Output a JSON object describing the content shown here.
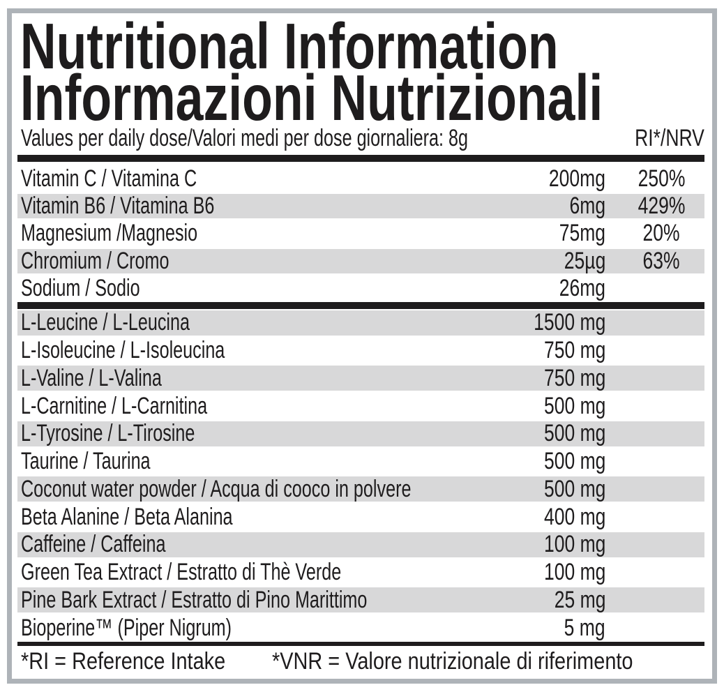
{
  "label": {
    "title_line1": "Nutritional Information",
    "title_line2": "Informazioni Nutrizionali",
    "subtitle": "Values per daily dose/Valori medi per dose giornaliera: 8g",
    "ri_header": "RI*/NRV",
    "footnote_left": "*RI = Reference Intake",
    "footnote_right": "*VNR = Valore nutrizionale di riferimento",
    "colors": {
      "ink": "#1e1c1d",
      "stripe_gray": "#d8d8d9",
      "frame_gray": "#aeb3b8",
      "background": "#ffffff"
    }
  },
  "table": {
    "sections": [
      {
        "rows": [
          {
            "label": "Vitamin C / Vitamina C",
            "amount": "200mg",
            "ri": "250%"
          },
          {
            "label": "Vitamin B6 / Vitamina B6",
            "amount": "6mg",
            "ri": "429%"
          },
          {
            "label": "Magnesium /Magnesio",
            "amount": "75mg",
            "ri": "20%"
          },
          {
            "label": "Chromium / Cromo",
            "amount": "25µg",
            "ri": "63%"
          },
          {
            "label": "Sodium / Sodio",
            "amount": "26mg",
            "ri": ""
          }
        ]
      },
      {
        "rows": [
          {
            "label": "L-Leucine / L-Leucina",
            "amount": "1500 mg",
            "ri": ""
          },
          {
            "label": "L-Isoleucine / L-Isoleucina",
            "amount": "750 mg",
            "ri": ""
          },
          {
            "label": "L-Valine / L-Valina",
            "amount": "750 mg",
            "ri": ""
          },
          {
            "label": "L-Carnitine / L-Carnitina",
            "amount": "500 mg",
            "ri": ""
          },
          {
            "label": "L-Tyrosine / L-Tirosine",
            "amount": "500 mg",
            "ri": ""
          },
          {
            "label": "Taurine / Taurina",
            "amount": "500 mg",
            "ri": ""
          },
          {
            "label": "Coconut water powder / Acqua di cooco in polvere",
            "amount": "500 mg",
            "ri": ""
          },
          {
            "label": "Beta Alanine / Beta Alanina",
            "amount": "400 mg",
            "ri": ""
          },
          {
            "label": "Caffeine / Caffeina",
            "amount": "100 mg",
            "ri": ""
          },
          {
            "label": "Green Tea Extract / Estratto di Thè Verde",
            "amount": "100 mg",
            "ri": ""
          },
          {
            "label": "Pine Bark Extract / Estratto di Pino Marittimo",
            "amount": "25 mg",
            "ri": ""
          },
          {
            "label": "Bioperine™ (Piper Nigrum)",
            "amount": "5 mg",
            "ri": ""
          }
        ]
      }
    ]
  }
}
